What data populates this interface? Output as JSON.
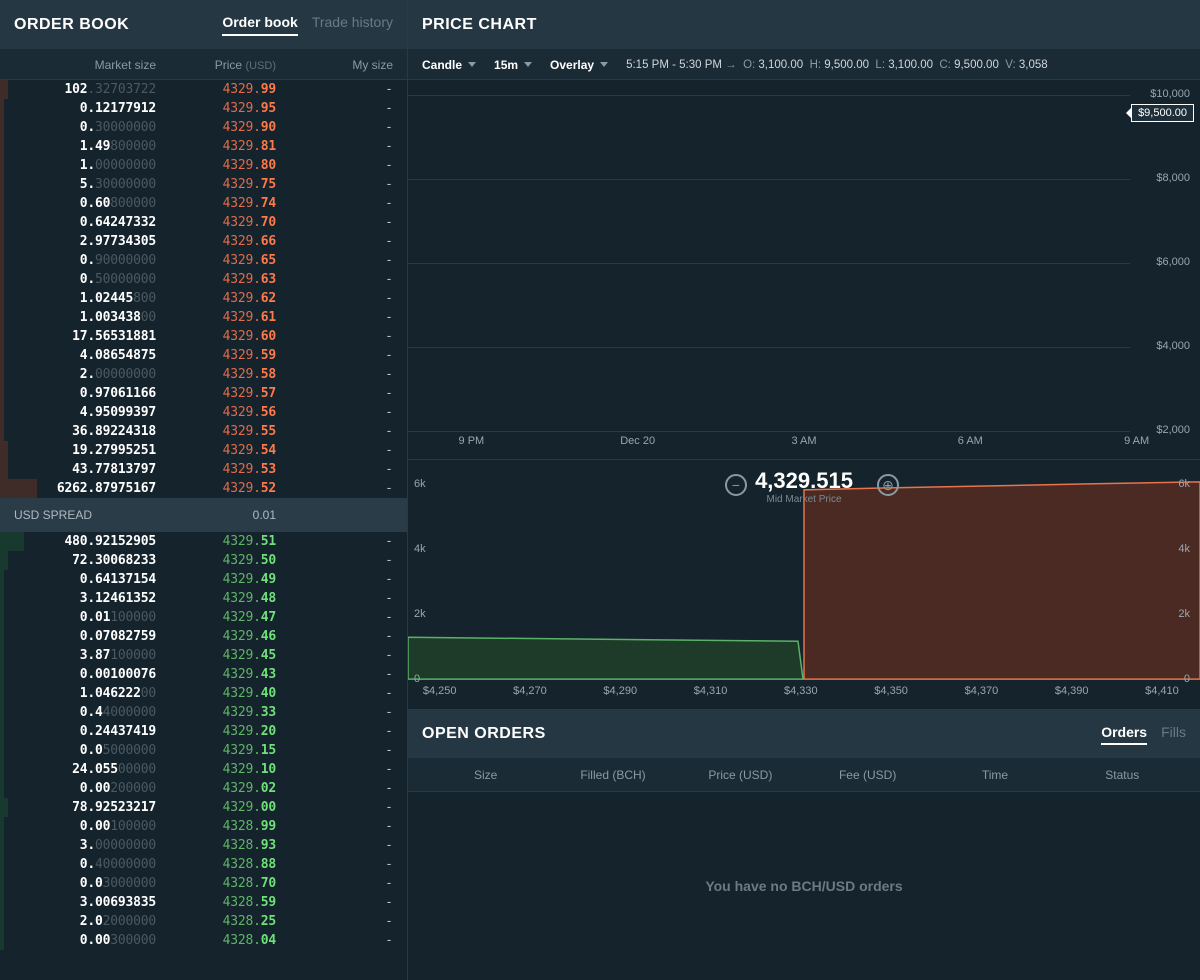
{
  "orderBook": {
    "title": "ORDER BOOK",
    "tabs": {
      "book": "Order book",
      "history": "Trade history",
      "active": "book"
    },
    "cols": {
      "marketSize": "Market size",
      "price": "Price",
      "priceUnit": "(USD)",
      "mySize": "My size"
    },
    "spread": {
      "label": "USD SPREAD",
      "value": "0.01"
    },
    "asks": [
      {
        "size": "102.32703722",
        "sig": 3,
        "price": "4329.99",
        "mySize": "-",
        "depth": 2
      },
      {
        "size": "0.12177912",
        "sig": 10,
        "price": "4329.95",
        "mySize": "-",
        "depth": 1
      },
      {
        "size": "0.30000000",
        "sig": 2,
        "price": "4329.90",
        "mySize": "-",
        "depth": 1
      },
      {
        "size": "1.49800000",
        "sig": 4,
        "price": "4329.81",
        "mySize": "-",
        "depth": 1
      },
      {
        "size": "1.00000000",
        "sig": 2,
        "price": "4329.80",
        "mySize": "-",
        "depth": 1
      },
      {
        "size": "5.30000000",
        "sig": 2,
        "price": "4329.75",
        "mySize": "-",
        "depth": 1
      },
      {
        "size": "0.60800000",
        "sig": 4,
        "price": "4329.74",
        "mySize": "-",
        "depth": 1
      },
      {
        "size": "0.64247332",
        "sig": 10,
        "price": "4329.70",
        "mySize": "-",
        "depth": 1
      },
      {
        "size": "2.97734305",
        "sig": 10,
        "price": "4329.66",
        "mySize": "-",
        "depth": 1
      },
      {
        "size": "0.90000000",
        "sig": 2,
        "price": "4329.65",
        "mySize": "-",
        "depth": 1
      },
      {
        "size": "0.50000000",
        "sig": 2,
        "price": "4329.63",
        "mySize": "-",
        "depth": 1
      },
      {
        "size": "1.02445800",
        "sig": 7,
        "price": "4329.62",
        "mySize": "-",
        "depth": 1
      },
      {
        "size": "1.00343800",
        "sig": 8,
        "price": "4329.61",
        "mySize": "-",
        "depth": 1
      },
      {
        "size": "17.56531881",
        "sig": 11,
        "price": "4329.60",
        "mySize": "-",
        "depth": 1
      },
      {
        "size": "4.08654875",
        "sig": 10,
        "price": "4329.59",
        "mySize": "-",
        "depth": 1
      },
      {
        "size": "2.00000000",
        "sig": 2,
        "price": "4329.58",
        "mySize": "-",
        "depth": 1
      },
      {
        "size": "0.97061166",
        "sig": 10,
        "price": "4329.57",
        "mySize": "-",
        "depth": 1
      },
      {
        "size": "4.95099397",
        "sig": 10,
        "price": "4329.56",
        "mySize": "-",
        "depth": 1
      },
      {
        "size": "36.89224318",
        "sig": 11,
        "price": "4329.55",
        "mySize": "-",
        "depth": 1
      },
      {
        "size": "19.27995251",
        "sig": 11,
        "price": "4329.54",
        "mySize": "-",
        "depth": 2
      },
      {
        "size": "43.77813797",
        "sig": 11,
        "price": "4329.53",
        "mySize": "-",
        "depth": 2
      },
      {
        "size": "6262.87975167",
        "sig": 13,
        "price": "4329.52",
        "mySize": "-",
        "depth": 9
      }
    ],
    "bids": [
      {
        "size": "480.92152905",
        "sig": 12,
        "price": "4329.51",
        "mySize": "-",
        "depth": 6
      },
      {
        "size": "72.30068233",
        "sig": 11,
        "price": "4329.50",
        "mySize": "-",
        "depth": 2
      },
      {
        "size": "0.64137154",
        "sig": 10,
        "price": "4329.49",
        "mySize": "-",
        "depth": 1
      },
      {
        "size": "3.12461352",
        "sig": 10,
        "price": "4329.48",
        "mySize": "-",
        "depth": 1
      },
      {
        "size": "0.01100000",
        "sig": 4,
        "price": "4329.47",
        "mySize": "-",
        "depth": 1
      },
      {
        "size": "0.07082759",
        "sig": 10,
        "price": "4329.46",
        "mySize": "-",
        "depth": 1
      },
      {
        "size": "3.87100000",
        "sig": 4,
        "price": "4329.45",
        "mySize": "-",
        "depth": 1
      },
      {
        "size": "0.00100076",
        "sig": 10,
        "price": "4329.43",
        "mySize": "-",
        "depth": 1
      },
      {
        "size": "1.04622200",
        "sig": 8,
        "price": "4329.40",
        "mySize": "-",
        "depth": 1
      },
      {
        "size": "0.44000000",
        "sig": 3,
        "price": "4329.33",
        "mySize": "-",
        "depth": 1
      },
      {
        "size": "0.24437419",
        "sig": 10,
        "price": "4329.20",
        "mySize": "-",
        "depth": 1
      },
      {
        "size": "0.05000000",
        "sig": 3,
        "price": "4329.15",
        "mySize": "-",
        "depth": 1
      },
      {
        "size": "24.05500000",
        "sig": 6,
        "price": "4329.10",
        "mySize": "-",
        "depth": 1
      },
      {
        "size": "0.00200000",
        "sig": 4,
        "price": "4329.02",
        "mySize": "-",
        "depth": 1
      },
      {
        "size": "78.92523217",
        "sig": 11,
        "price": "4329.00",
        "mySize": "-",
        "depth": 2
      },
      {
        "size": "0.00100000",
        "sig": 4,
        "price": "4328.99",
        "mySize": "-",
        "depth": 1
      },
      {
        "size": "3.00000000",
        "sig": 2,
        "price": "4328.93",
        "mySize": "-",
        "depth": 1
      },
      {
        "size": "0.40000000",
        "sig": 2,
        "price": "4328.88",
        "mySize": "-",
        "depth": 1
      },
      {
        "size": "0.03000000",
        "sig": 3,
        "price": "4328.70",
        "mySize": "-",
        "depth": 1
      },
      {
        "size": "3.00693835",
        "sig": 10,
        "price": "4328.59",
        "mySize": "-",
        "depth": 1
      },
      {
        "size": "2.02000000",
        "sig": 3,
        "price": "4328.25",
        "mySize": "-",
        "depth": 1
      },
      {
        "size": "0.00300000",
        "sig": 4,
        "price": "4328.04",
        "mySize": "-",
        "depth": 1
      }
    ]
  },
  "chart": {
    "title": "PRICE CHART",
    "toolbar": {
      "type": "Candle",
      "interval": "15m",
      "overlay": "Overlay"
    },
    "range": "5:15 PM - 5:30 PM",
    "ohlc": {
      "o": "3,100.00",
      "h": "9,500.00",
      "l": "3,100.00",
      "c": "9,500.00",
      "v": "3,058"
    },
    "top": {
      "yTicks": [
        "$10,000",
        "$8,000",
        "$6,000",
        "$4,000",
        "$2,000"
      ],
      "priceTag": "$9,500.00",
      "xTicks": [
        "9 PM",
        "Dec 20",
        "3 AM",
        "6 AM",
        "9 AM"
      ]
    },
    "bottom": {
      "midPrice": "4,329.515",
      "midLabel": "Mid Market Price",
      "yTicksL": [
        "6k",
        "4k",
        "2k",
        "0"
      ],
      "yTicksR": [
        "6k",
        "4k",
        "2k",
        "0"
      ],
      "xTicks": [
        "$4,250",
        "$4,270",
        "$4,290",
        "$4,310",
        "$4,330",
        "$4,350",
        "$4,370",
        "$4,390",
        "$4,410"
      ],
      "colors": {
        "bid": "#5ab268",
        "ask": "#e8734c",
        "askFill": "#4a2a22",
        "bidFill": "#1e3a28"
      }
    }
  },
  "openOrders": {
    "title": "OPEN ORDERS",
    "tabs": {
      "orders": "Orders",
      "fills": "Fills",
      "active": "orders"
    },
    "cols": {
      "size": "Size",
      "filled": "Filled",
      "filledUnit": "(BCH)",
      "price": "Price",
      "priceUnit": "(USD)",
      "fee": "Fee",
      "feeUnit": "(USD)",
      "time": "Time",
      "status": "Status"
    },
    "empty": "You have no BCH/USD orders"
  }
}
